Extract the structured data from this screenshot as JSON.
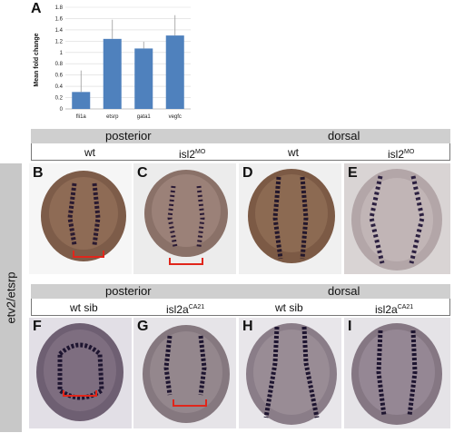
{
  "panels": {
    "A": "A",
    "B": "B",
    "C": "C",
    "D": "D",
    "E": "E",
    "F": "F",
    "G": "G",
    "H": "H",
    "I": "I"
  },
  "side_label": "etv2/etsrp",
  "row1": {
    "view_left": "posterior",
    "view_right": "dorsal",
    "conditions": [
      {
        "base": "wt",
        "sup": ""
      },
      {
        "base": "isl2",
        "sup": "MO"
      },
      {
        "base": "wt",
        "sup": ""
      },
      {
        "base": "isl2",
        "sup": "MO"
      }
    ]
  },
  "row2": {
    "view_left": "posterior",
    "view_right": "dorsal",
    "conditions": [
      {
        "base": "wt sib",
        "sup": ""
      },
      {
        "base": "isl2a",
        "sup": "CA21"
      },
      {
        "base": "wt sib",
        "sup": ""
      },
      {
        "base": "isl2a",
        "sup": "CA21"
      }
    ]
  },
  "chart_data": {
    "type": "bar",
    "title": "",
    "xlabel": "",
    "ylabel": "Mean fold change",
    "categories": [
      "fli1a",
      "etsrp",
      "gata1",
      "vegfc"
    ],
    "values": [
      0.3,
      1.24,
      1.07,
      1.3
    ],
    "errors_upper": [
      0.38,
      0.34,
      0.12,
      0.36
    ],
    "ylim": [
      0,
      1.8
    ],
    "yticks": [
      "0",
      "0.2",
      "0.4",
      "0.6",
      "0.8",
      "1",
      "1.2",
      "1.4",
      "1.6",
      "1.8"
    ],
    "grid": true,
    "bar_color": "#4f81bd"
  }
}
